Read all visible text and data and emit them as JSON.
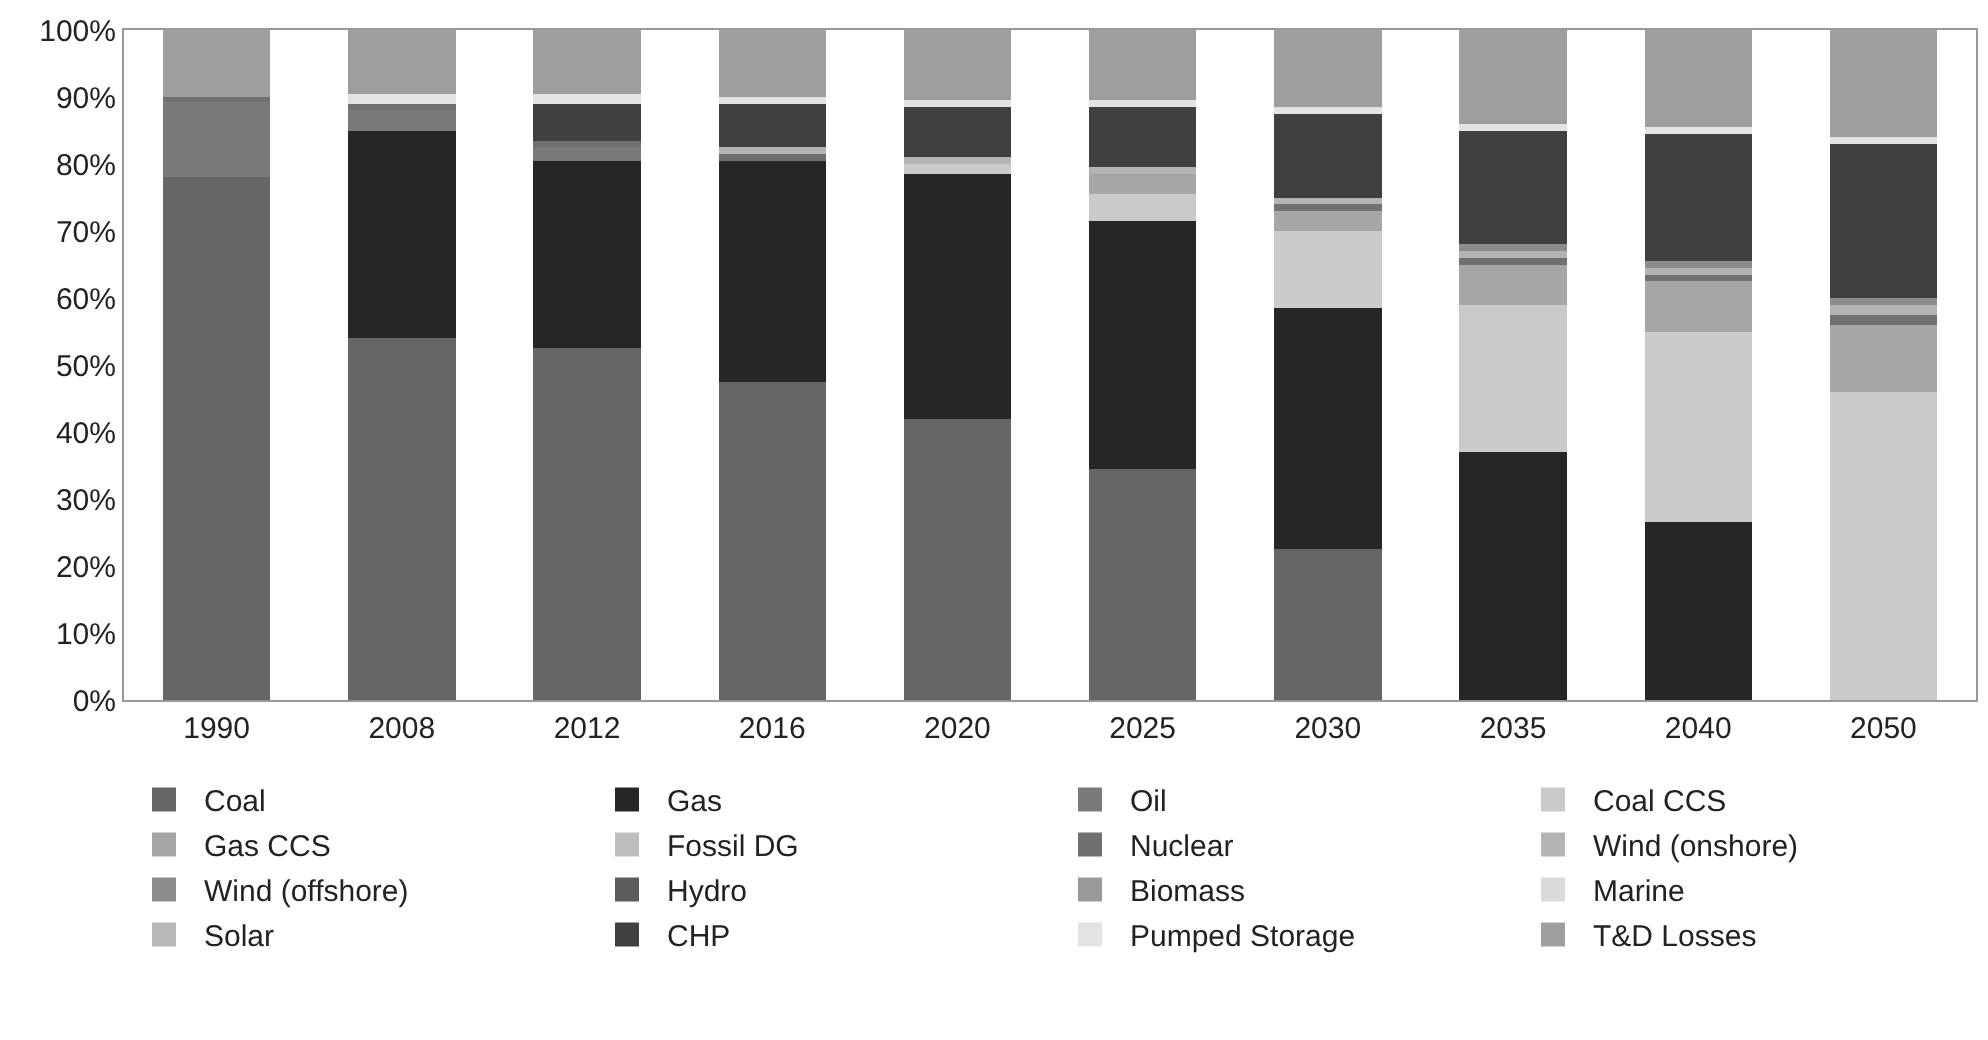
{
  "chart_data": {
    "type": "bar",
    "stacked": true,
    "categories": [
      "1990",
      "2008",
      "2012",
      "2016",
      "2020",
      "2025",
      "2030",
      "2035",
      "2040",
      "2050"
    ],
    "series": [
      {
        "name": "Coal",
        "color": "#666666",
        "values": [
          78,
          54,
          52.5,
          47.5,
          42,
          34.5,
          22.5,
          0,
          0,
          0
        ]
      },
      {
        "name": "Gas",
        "color": "#262626",
        "values": [
          0,
          31,
          28,
          33,
          36.5,
          37,
          36,
          37,
          26.5,
          0
        ]
      },
      {
        "name": "Oil",
        "color": "#7a7a7a",
        "values": [
          11.5,
          3,
          2,
          0,
          0,
          0,
          0,
          0,
          0,
          0
        ]
      },
      {
        "name": "Coal CCS",
        "color": "#cacaca",
        "values": [
          0,
          0,
          0,
          0,
          1.5,
          4,
          11.5,
          22,
          28.5,
          46
        ]
      },
      {
        "name": "Gas CCS",
        "color": "#a6a6a6",
        "values": [
          0,
          0,
          0,
          0,
          0,
          3,
          3,
          6,
          7.5,
          10
        ]
      },
      {
        "name": "Fossil DG",
        "color": "#bdbdbd",
        "values": [
          0,
          0,
          0,
          0,
          0,
          0,
          0,
          0,
          0,
          0
        ]
      },
      {
        "name": "Nuclear",
        "color": "#707070",
        "values": [
          0.5,
          1,
          1,
          1,
          0,
          0,
          1,
          1,
          1,
          1.5
        ]
      },
      {
        "name": "Wind (onshore)",
        "color": "#b3b3b3",
        "values": [
          0,
          0,
          0,
          1,
          1,
          1,
          1,
          1,
          1,
          1.5
        ]
      },
      {
        "name": "Wind (offshore)",
        "color": "#8c8c8c",
        "values": [
          0,
          0,
          0,
          0,
          0,
          0,
          0,
          1,
          1,
          1
        ]
      },
      {
        "name": "Hydro",
        "color": "#5c5c5c",
        "values": [
          0,
          0,
          0,
          0,
          0,
          0,
          0,
          0,
          0,
          0
        ]
      },
      {
        "name": "Biomass",
        "color": "#999999",
        "values": [
          0,
          0,
          0,
          0,
          0,
          0,
          0,
          0,
          0,
          0
        ]
      },
      {
        "name": "Marine",
        "color": "#dadada",
        "values": [
          0,
          0,
          0,
          0,
          0,
          0,
          0,
          0,
          0,
          0
        ]
      },
      {
        "name": "Solar",
        "color": "#b8b8b8",
        "values": [
          0,
          0,
          0,
          0,
          0,
          0,
          0,
          0,
          0,
          0
        ]
      },
      {
        "name": "CHP",
        "color": "#404040",
        "values": [
          0,
          0,
          5.5,
          6.5,
          7.5,
          9,
          12.5,
          17,
          19,
          23
        ]
      },
      {
        "name": "Pumped Storage",
        "color": "#e3e3e3",
        "values": [
          0,
          1.5,
          1.5,
          1,
          1,
          1,
          1,
          1,
          1,
          1
        ]
      },
      {
        "name": "T&D Losses",
        "color": "#9e9e9e",
        "values": [
          10,
          9.5,
          9.5,
          10,
          10.5,
          10.5,
          11.5,
          14,
          14.5,
          16
        ]
      }
    ],
    "ylim": [
      0,
      100
    ],
    "yticks": [
      {
        "value": 0,
        "label": "0%"
      },
      {
        "value": 10,
        "label": "10%"
      },
      {
        "value": 20,
        "label": "20%"
      },
      {
        "value": 30,
        "label": "30%"
      },
      {
        "value": 40,
        "label": "40%"
      },
      {
        "value": 50,
        "label": "50%"
      },
      {
        "value": 60,
        "label": "60%"
      },
      {
        "value": 70,
        "label": "70%"
      },
      {
        "value": 80,
        "label": "80%"
      },
      {
        "value": 90,
        "label": "90%"
      },
      {
        "value": 100,
        "label": "100%"
      }
    ],
    "legend": "bottom"
  }
}
